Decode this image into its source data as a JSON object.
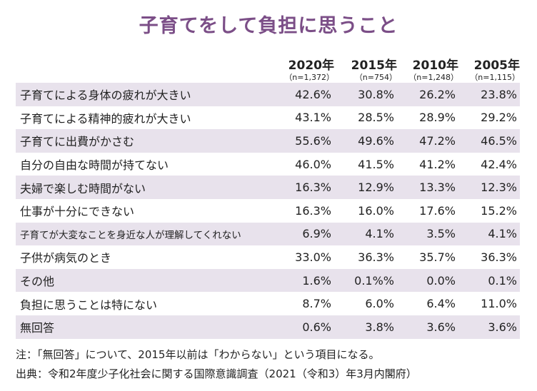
{
  "chart_data": {
    "type": "table",
    "title": "子育てをして負担に思うこと",
    "columns": [
      {
        "year": "2020年",
        "n": "（n=1,372）"
      },
      {
        "year": "2015年",
        "n": "（n=754）"
      },
      {
        "year": "2010年",
        "n": "（n=1,248）"
      },
      {
        "year": "2005年",
        "n": "（n=1,115）"
      }
    ],
    "rows": [
      {
        "label": "子育てによる身体の疲れが大きい",
        "values": [
          "42.6%",
          "30.8%",
          "26.2%",
          "23.8%"
        ]
      },
      {
        "label": "子育てによる精神的疲れが大きい",
        "values": [
          "43.1%",
          "28.5%",
          "28.9%",
          "29.2%"
        ]
      },
      {
        "label": "子育てに出費がかさむ",
        "values": [
          "55.6%",
          "49.6%",
          "47.2%",
          "46.5%"
        ]
      },
      {
        "label": "自分の自由な時間が持てない",
        "values": [
          "46.0%",
          "41.5%",
          "41.2%",
          "42.4%"
        ]
      },
      {
        "label": "夫婦で楽しむ時間がない",
        "values": [
          "16.3%",
          "12.9%",
          "13.3%",
          "12.3%"
        ]
      },
      {
        "label": "仕事が十分にできない",
        "values": [
          "16.3%",
          "16.0%",
          "17.6%",
          "15.2%"
        ]
      },
      {
        "label": "子育てが大変なことを身近な人が理解してくれない",
        "values": [
          "6.9%",
          "4.1%",
          "3.5%",
          "4.1%"
        ]
      },
      {
        "label": "子供が病気のとき",
        "values": [
          "33.0%",
          "36.3%",
          "35.7%",
          "36.3%"
        ]
      },
      {
        "label": "その他",
        "values": [
          "1.6%",
          "0.1%%",
          "0.0%",
          "0.1%"
        ]
      },
      {
        "label": "負担に思うことは特にない",
        "values": [
          "8.7%",
          "6.0%",
          "6.4%",
          "11.0%"
        ]
      },
      {
        "label": "無回答",
        "values": [
          "0.6%",
          "3.8%",
          "3.6%",
          "3.6%"
        ]
      }
    ],
    "notes": [
      "注：「無回答」について、2015年以前は「わからない」という項目になる。",
      "出典：令和2年度少子化社会に関する国際意識調査（2021（令和3）年3月内閣府）"
    ],
    "colors": {
      "title": "#7b4e87",
      "stripe": "#e8e2ec"
    }
  }
}
